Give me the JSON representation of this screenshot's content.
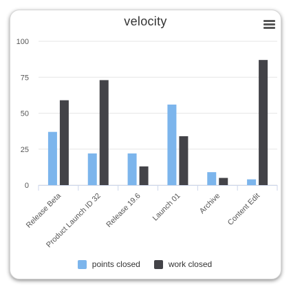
{
  "chart_data": {
    "type": "bar",
    "title": "velocity",
    "categories": [
      "Release Beta",
      "Product Launch ID 32",
      "Release 19.6",
      "Launch 01",
      "Archive",
      "Content Edit"
    ],
    "series": [
      {
        "name": "points closed",
        "color": "#7cb5ec",
        "values": [
          37,
          22,
          22,
          56,
          9,
          4
        ]
      },
      {
        "name": "work closed",
        "color": "#434348",
        "values": [
          59,
          73,
          13,
          34,
          5,
          87
        ]
      }
    ],
    "yticks": [
      0,
      25,
      50,
      75,
      100
    ],
    "ylim": [
      0,
      100
    ],
    "legend_position": "bottom",
    "grid": true
  },
  "menu_icon": "hamburger-menu-icon"
}
